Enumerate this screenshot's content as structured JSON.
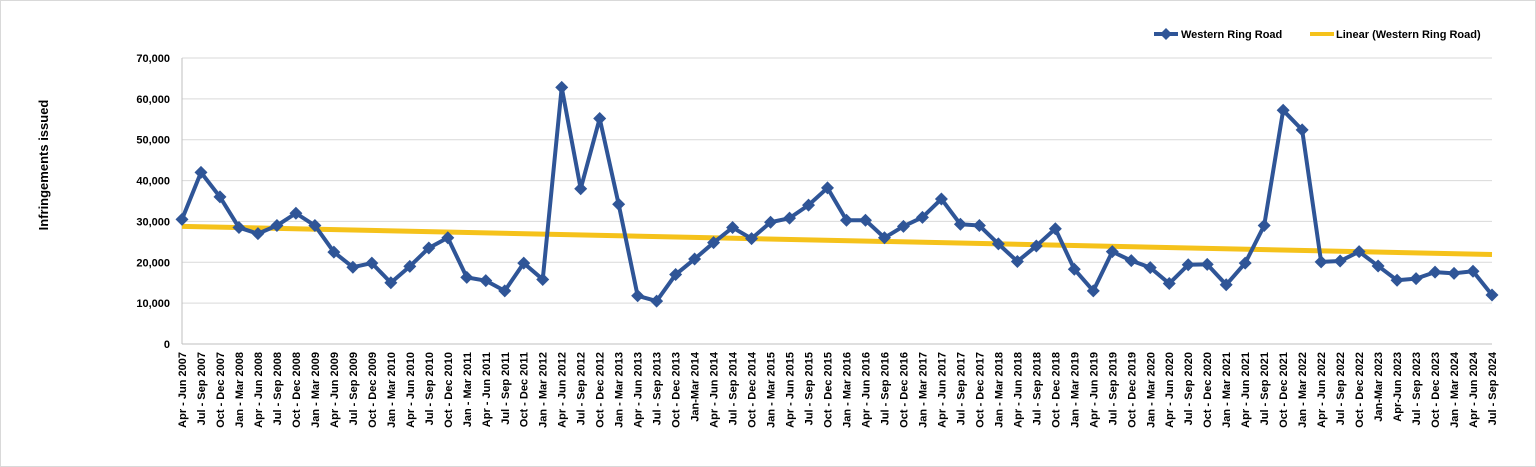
{
  "chart_data": {
    "type": "line",
    "title": "",
    "ylabel": "Infringements issued",
    "xlabel": "",
    "ylim": [
      0,
      70000
    ],
    "yticks": [
      0,
      10000,
      20000,
      30000,
      40000,
      50000,
      60000,
      70000
    ],
    "ytick_labels": [
      "0",
      "10,000",
      "20,000",
      "30,000",
      "40,000",
      "50,000",
      "60,000",
      "70,000"
    ],
    "grid": true,
    "legend_position": "top-right",
    "categories": [
      "Apr - Jun 2007",
      "Jul - Sep 2007",
      "Oct - Dec 2007",
      "Jan - Mar 2008",
      "Apr - Jun 2008",
      "Jul - Sep 2008",
      "Oct - Dec 2008",
      "Jan - Mar 2009",
      "Apr - Jun 2009",
      "Jul - Sep 2009",
      "Oct - Dec 2009",
      "Jan - Mar 2010",
      "Apr - Jun 2010",
      "Jul - Sep 2010",
      "Oct - Dec 2010",
      "Jan - Mar 2011",
      "Apr - Jun 2011",
      "Jul - Sep 2011",
      "Oct - Dec 2011",
      "Jan - Mar 2012",
      "Apr - Jun 2012",
      "Jul - Sep 2012",
      "Oct - Dec 2012",
      "Jan - Mar 2013",
      "Apr - Jun 2013",
      "Jul - Sep 2013",
      "Oct - Dec 2013",
      "Jan-Mar 2014",
      "Apr - Jun 2014",
      "Jul - Sep 2014",
      "Oct - Dec 2014",
      "Jan - Mar 2015",
      "Apr - Jun 2015",
      "Jul - Sep 2015",
      "Oct - Dec 2015",
      "Jan - Mar 2016",
      "Apr - Jun 2016",
      "Jul - Sep 2016",
      "Oct - Dec 2016",
      "Jan - Mar 2017",
      "Apr - Jun 2017",
      "Jul - Sep 2017",
      "Oct - Dec 2017",
      "Jan - Mar 2018",
      "Apr - Jun 2018",
      "Jul - Sep 2018",
      "Oct - Dec 2018",
      "Jan - Mar 2019",
      "Apr - Jun 2019",
      "Jul - Sep 2019",
      "Oct - Dec 2019",
      "Jan - Mar 2020",
      "Apr - Jun 2020",
      "Jul - Sep 2020",
      "Oct - Dec 2020",
      "Jan - Mar 2021",
      "Apr - Jun 2021",
      "Jul - Sep 2021",
      "Oct - Dec 2021",
      "Jan - Mar 2022",
      "Apr - Jun 2022",
      "Jul - Sep 2022",
      "Oct - Dec 2022",
      "Jan-Mar 2023",
      "Apr-Jun 2023",
      "Jul - Sep 2023",
      "Oct - Dec 2023",
      "Jan - Mar 2024",
      "Apr - Jun 2024",
      "Jul - Sep 2024"
    ],
    "series": [
      {
        "name": "Western Ring Road",
        "color": "#2f5597",
        "marker": "diamond",
        "values": [
          30500,
          42000,
          36000,
          28500,
          27000,
          29000,
          32000,
          29000,
          22500,
          18800,
          19800,
          15000,
          19000,
          23500,
          26000,
          16300,
          15500,
          13000,
          19800,
          15800,
          62800,
          38000,
          55200,
          34200,
          11800,
          10500,
          17000,
          20800,
          24800,
          28500,
          25800,
          29800,
          30800,
          34000,
          38200,
          30300,
          30300,
          26000,
          28800,
          31000,
          35500,
          29300,
          29000,
          24500,
          20200,
          24000,
          28200,
          18300,
          13000,
          22600,
          20400,
          18700,
          14800,
          19400,
          19500,
          14500,
          19800,
          29000,
          57200,
          52400,
          20100,
          20300,
          22600,
          19100,
          15600,
          16000,
          17600,
          17300,
          17800,
          12000
        ]
      }
    ],
    "trendline": {
      "name": "Linear (Western Ring Road)",
      "color": "#f5c21b",
      "type": "linear",
      "start_value": 28800,
      "end_value": 21900
    }
  }
}
